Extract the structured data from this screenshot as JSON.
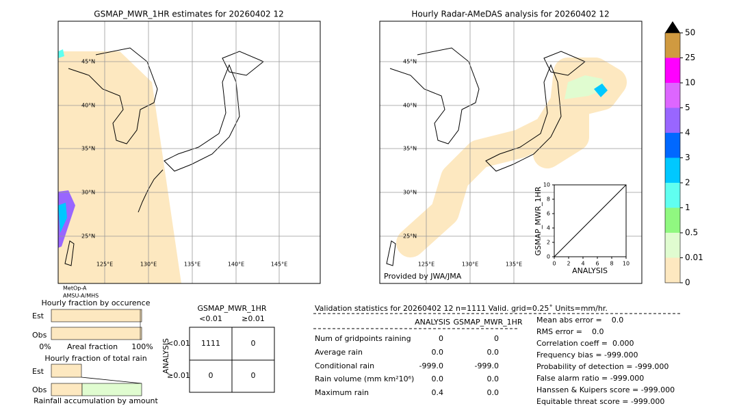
{
  "left_map": {
    "title": "GSMAP_MWR_1HR estimates for 20260402 12",
    "lat_labels": [
      "45°N",
      "40°N",
      "35°N",
      "30°N",
      "25°N"
    ],
    "lon_labels": [
      "125°E",
      "130°E",
      "135°E",
      "140°E",
      "145°E"
    ],
    "satellites": [
      "MetOp-A",
      "AMSU-A/MHS"
    ]
  },
  "right_map": {
    "title": "Hourly Radar-AMeDAS analysis for 20260402 12",
    "lat_labels": [
      "45°N",
      "40°N",
      "35°N",
      "30°N",
      "25°N"
    ],
    "lon_labels": [
      "125°E",
      "130°E",
      "135°E"
    ],
    "credit": "Provided by JWA/JMA"
  },
  "colorbar": {
    "levels": [
      0,
      0.01,
      0.5,
      1,
      2,
      3,
      4,
      5,
      10,
      25,
      50
    ],
    "colors": [
      "#fde8c0",
      "#e0fcd0",
      "#90f880",
      "#60fff0",
      "#00c8ff",
      "#0068ff",
      "#9966ff",
      "#dd66ff",
      "#ff00ff",
      "#d09a40"
    ],
    "over_color": "#000000"
  },
  "scatter": {
    "xlabel": "ANALYSIS",
    "ylabel": "GSMAP_MWR_1HR",
    "xlim": [
      0,
      10
    ],
    "ylim": [
      0,
      10
    ],
    "xticks": [
      0,
      2,
      4,
      6,
      8,
      10
    ],
    "yticks": [
      0,
      2,
      4,
      6,
      8,
      10
    ]
  },
  "fraction_occurrence": {
    "title": "Hourly fraction by occurence",
    "rows": [
      "Est",
      "Obs"
    ],
    "axis_labels": [
      "0%",
      "Areal fraction",
      "100%"
    ]
  },
  "fraction_total": {
    "title": "Hourly fraction of total rain",
    "rows": [
      "Est",
      "Obs"
    ],
    "footer": "Rainfall accumulation by amount"
  },
  "contingency": {
    "title": "GSMAP_MWR_1HR",
    "col_headers": [
      "<0.01",
      "≥0.01"
    ],
    "row_axis": "ANALYSIS",
    "row_headers": [
      "<0.01",
      "≥0.01"
    ],
    "cells": [
      [
        1111,
        0
      ],
      [
        0,
        0
      ]
    ]
  },
  "validation": {
    "title": "Validation statistics for 20260402 12  n=1111 Valid. grid=0.25˚ Units=mm/hr.",
    "columns": [
      "ANALYSIS",
      "GSMAP_MWR_1HR"
    ],
    "rows": [
      {
        "label": "Num of gridpoints raining",
        "values": [
          "0",
          "0"
        ]
      },
      {
        "label": "Average rain",
        "values": [
          "0.0",
          "0.0"
        ]
      },
      {
        "label": "Conditional rain",
        "values": [
          "-999.0",
          "-999.0"
        ]
      },
      {
        "label": "Rain volume (mm km²10⁶)",
        "values": [
          "0.0",
          "0.0"
        ]
      },
      {
        "label": "Maximum rain",
        "values": [
          "0.4",
          "0.0"
        ]
      }
    ],
    "scores": [
      "Mean abs error =    0.0",
      "RMS error =    0.0",
      "Correlation coeff =  0.000",
      "Frequency bias = -999.000",
      "Probability of detection = -999.000",
      "False alarm ratio = -999.000",
      "Hanssen & Kuipers score = -999.000",
      "Equitable threat score = -999.000"
    ]
  }
}
